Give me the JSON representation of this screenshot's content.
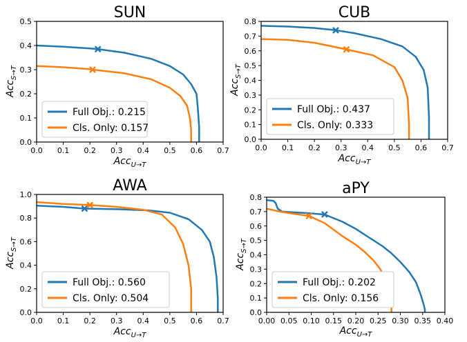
{
  "chart_data": [
    {
      "type": "line",
      "title": "SUN",
      "xlabel": "Acc",
      "xlabel_sub": "U→T",
      "ylabel": "Acc",
      "ylabel_sub": "S→T",
      "xlim": [
        0,
        0.7
      ],
      "ylim": [
        0,
        0.5
      ],
      "xticks": [
        "0.0",
        "0.1",
        "0.2",
        "0.3",
        "0.4",
        "0.5",
        "0.6",
        "0.7"
      ],
      "yticks": [
        "0.0",
        "0.1",
        "0.2",
        "0.3",
        "0.4",
        "0.5"
      ],
      "legend_position": "lower-left",
      "series": [
        {
          "name": "Full Obj.: 0.215",
          "color": "#1f77b4",
          "x": [
            0.0,
            0.1,
            0.2,
            0.23,
            0.33,
            0.43,
            0.5,
            0.55,
            0.58,
            0.6,
            0.605,
            0.61,
            0.61
          ],
          "y": [
            0.4,
            0.395,
            0.388,
            0.385,
            0.37,
            0.345,
            0.315,
            0.28,
            0.24,
            0.2,
            0.14,
            0.06,
            0.0
          ],
          "marker": [
            0.23,
            0.385
          ]
        },
        {
          "name": "Cls. Only: 0.157",
          "color": "#ff7f0e",
          "x": [
            0.0,
            0.1,
            0.2,
            0.21,
            0.33,
            0.43,
            0.5,
            0.54,
            0.565,
            0.575,
            0.58,
            0.58
          ],
          "y": [
            0.315,
            0.31,
            0.302,
            0.3,
            0.285,
            0.26,
            0.225,
            0.19,
            0.15,
            0.1,
            0.05,
            0.0
          ],
          "marker": [
            0.21,
            0.3
          ]
        }
      ]
    },
    {
      "type": "line",
      "title": "CUB",
      "xlabel": "Acc",
      "xlabel_sub": "U→T",
      "ylabel": "Acc",
      "ylabel_sub": "S→T",
      "xlim": [
        0,
        0.7
      ],
      "ylim": [
        0,
        0.8
      ],
      "xticks": [
        "0.0",
        "0.1",
        "0.2",
        "0.3",
        "0.4",
        "0.5",
        "0.6",
        "0.7"
      ],
      "yticks": [
        "0.0",
        "0.1",
        "0.2",
        "0.3",
        "0.4",
        "0.5",
        "0.6",
        "0.7",
        "0.8"
      ],
      "legend_position": "lower-left",
      "series": [
        {
          "name": "Full Obj.: 0.437",
          "color": "#1f77b4",
          "x": [
            0.0,
            0.1,
            0.2,
            0.28,
            0.35,
            0.45,
            0.53,
            0.58,
            0.61,
            0.625,
            0.63,
            0.63
          ],
          "y": [
            0.77,
            0.765,
            0.755,
            0.74,
            0.72,
            0.68,
            0.63,
            0.56,
            0.47,
            0.35,
            0.15,
            0.0
          ],
          "marker": [
            0.28,
            0.74
          ]
        },
        {
          "name": "Cls. Only: 0.333",
          "color": "#ff7f0e",
          "x": [
            0.0,
            0.1,
            0.2,
            0.32,
            0.42,
            0.5,
            0.53,
            0.55,
            0.555,
            0.555
          ],
          "y": [
            0.68,
            0.675,
            0.655,
            0.61,
            0.57,
            0.49,
            0.4,
            0.28,
            0.1,
            0.0
          ],
          "marker": [
            0.32,
            0.61
          ]
        }
      ]
    },
    {
      "type": "line",
      "title": "AWA",
      "xlabel": "Acc",
      "xlabel_sub": "U→T",
      "ylabel": "Acc",
      "ylabel_sub": "S→T",
      "xlim": [
        0,
        0.7
      ],
      "ylim": [
        0,
        1.0
      ],
      "xticks": [
        "0.0",
        "0.1",
        "0.2",
        "0.3",
        "0.4",
        "0.5",
        "0.6",
        "0.7"
      ],
      "yticks": [
        "0.0",
        "0.2",
        "0.4",
        "0.6",
        "0.8",
        "1.0"
      ],
      "legend_position": "lower-left",
      "series": [
        {
          "name": "Full Obj.: 0.560",
          "color": "#1f77b4",
          "x": [
            0.0,
            0.1,
            0.18,
            0.3,
            0.42,
            0.5,
            0.57,
            0.62,
            0.65,
            0.665,
            0.675,
            0.68,
            0.68
          ],
          "y": [
            0.905,
            0.895,
            0.88,
            0.875,
            0.865,
            0.845,
            0.79,
            0.7,
            0.6,
            0.47,
            0.3,
            0.12,
            0.0
          ],
          "marker": [
            0.18,
            0.88
          ]
        },
        {
          "name": "Cls. Only: 0.504",
          "color": "#ff7f0e",
          "x": [
            0.0,
            0.1,
            0.2,
            0.3,
            0.4,
            0.47,
            0.52,
            0.55,
            0.57,
            0.58,
            0.58
          ],
          "y": [
            0.935,
            0.92,
            0.91,
            0.895,
            0.87,
            0.83,
            0.72,
            0.58,
            0.4,
            0.2,
            0.0
          ],
          "marker": [
            0.2,
            0.91
          ]
        }
      ]
    },
    {
      "type": "line",
      "title": "aPY",
      "xlabel": "Acc",
      "xlabel_sub": "U→T",
      "ylabel": "Acc",
      "ylabel_sub": "S→T",
      "xlim": [
        0,
        0.4
      ],
      "ylim": [
        0,
        0.8
      ],
      "xticks": [
        "0.00",
        "0.05",
        "0.10",
        "0.15",
        "0.20",
        "0.25",
        "0.30",
        "0.35",
        "0.40"
      ],
      "yticks": [
        "0.0",
        "0.1",
        "0.2",
        "0.3",
        "0.4",
        "0.5",
        "0.6",
        "0.7",
        "0.8"
      ],
      "legend_position": "lower-left",
      "series": [
        {
          "name": "Full Obj.: 0.202",
          "color": "#1f77b4",
          "x": [
            0.0,
            0.015,
            0.02,
            0.025,
            0.035,
            0.06,
            0.09,
            0.13,
            0.17,
            0.2,
            0.23,
            0.26,
            0.28,
            0.3,
            0.32,
            0.335,
            0.345,
            0.352,
            0.355,
            0.355
          ],
          "y": [
            0.78,
            0.775,
            0.76,
            0.72,
            0.7,
            0.695,
            0.69,
            0.68,
            0.63,
            0.58,
            0.52,
            0.46,
            0.41,
            0.35,
            0.28,
            0.21,
            0.13,
            0.06,
            0.02,
            0.0
          ],
          "marker": [
            0.13,
            0.68
          ]
        },
        {
          "name": "Cls. Only: 0.156",
          "color": "#ff7f0e",
          "x": [
            0.0,
            0.03,
            0.06,
            0.095,
            0.13,
            0.17,
            0.2,
            0.22,
            0.24,
            0.255,
            0.265,
            0.27,
            0.275,
            0.28,
            0.28
          ],
          "y": [
            0.72,
            0.7,
            0.685,
            0.67,
            0.62,
            0.53,
            0.47,
            0.42,
            0.36,
            0.3,
            0.24,
            0.18,
            0.1,
            0.04,
            0.0
          ],
          "marker": [
            0.095,
            0.67
          ]
        }
      ]
    }
  ]
}
